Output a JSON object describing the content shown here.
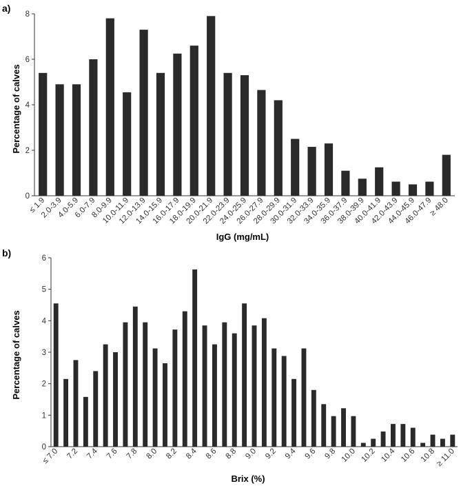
{
  "chart_data": [
    {
      "type": "bar",
      "panel_label": "a)",
      "xlabel": "IgG (mg/mL)",
      "ylabel": "Percentage of calves",
      "ylim": [
        0,
        8
      ],
      "yticks": [
        "0",
        "2",
        "4",
        "6",
        "8"
      ],
      "categories": [
        "≤ 1.9",
        "2.0-3.9",
        "4.0-5.9",
        "6.0-7.9",
        "8.0-9.9",
        "10.0-11.9",
        "12.0-13.9",
        "14.0-15.9",
        "16.0-17.9",
        "18.0-19.9",
        "20.0-21.9",
        "22.0-23.9",
        "24.0-25.9",
        "26.0-27.9",
        "28.0-29.9",
        "30.0-31.9",
        "32.0-33.9",
        "34.0-35.9",
        "36.0-37.9",
        "38.0-39.9",
        "40.0-41.9",
        "42.0-43.9",
        "44.0-45.9",
        "46.0-47.9",
        "≥ 48.0"
      ],
      "values": [
        5.4,
        4.9,
        4.9,
        6.0,
        7.8,
        4.55,
        7.3,
        5.4,
        6.25,
        6.6,
        7.9,
        5.4,
        5.3,
        4.65,
        4.2,
        2.5,
        2.15,
        2.3,
        1.1,
        0.75,
        1.25,
        0.62,
        0.5,
        0.62,
        1.8
      ],
      "grid": false,
      "bar_color": "#2a2a2a"
    },
    {
      "type": "bar",
      "panel_label": "b)",
      "xlabel": "Brix (%)",
      "ylabel": "Percentage of calves",
      "ylim": [
        0,
        6
      ],
      "yticks": [
        "0",
        "1",
        "2",
        "3",
        "4",
        "5",
        "6"
      ],
      "categories": [
        "≤ 7.0",
        "7.1",
        "7.2",
        "7.3",
        "7.4",
        "7.5",
        "7.6",
        "7.7",
        "7.8",
        "7.9",
        "8.0",
        "8.1",
        "8.2",
        "8.3",
        "8.4",
        "8.5",
        "8.6",
        "8.7",
        "8.8",
        "8.9",
        "9.0",
        "9.1",
        "9.2",
        "9.3",
        "9.4",
        "9.5",
        "9.6",
        "9.7",
        "9.8",
        "9.9",
        "10.0",
        "10.1",
        "10.2",
        "10.3",
        "10.4",
        "10.5",
        "10.6",
        "10.7",
        "10.8",
        "10.9",
        "≥ 11.0"
      ],
      "tick_labels_shown": [
        "≤ 7.0",
        "7.2",
        "7.4",
        "7.6",
        "7.8",
        "8.0",
        "8.2",
        "8.4",
        "8.6",
        "8.8",
        "9.0",
        "9.2",
        "9.4",
        "9.6",
        "9.8",
        "10.0",
        "10.2",
        "10.4",
        "10.6",
        "10.8",
        "≥ 11.0"
      ],
      "values": [
        4.55,
        2.15,
        2.75,
        1.58,
        2.4,
        3.25,
        3.0,
        3.95,
        4.45,
        3.95,
        3.12,
        2.65,
        3.72,
        4.3,
        5.63,
        3.85,
        3.25,
        3.95,
        3.6,
        4.55,
        3.85,
        4.08,
        3.12,
        2.88,
        2.15,
        3.12,
        1.8,
        1.35,
        0.97,
        1.22,
        0.97,
        0.12,
        0.25,
        0.48,
        0.72,
        0.72,
        0.6,
        0.12,
        0.38,
        0.25,
        0.38
      ],
      "grid": false,
      "bar_color": "#2a2a2a"
    }
  ]
}
